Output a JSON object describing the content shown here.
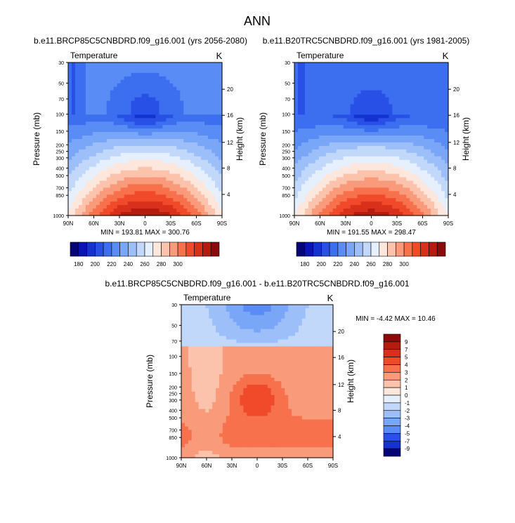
{
  "page_title": "ANN",
  "chart_data": [
    {
      "type": "heatmap",
      "title": "b.e11.BRCP85C5CNBDRD.f09_g16.001 (yrs 2056-2080)",
      "variable": "Temperature",
      "units": "K",
      "xlabel": "",
      "ylabel": "Pressure (mb)",
      "y2label": "Height (km)",
      "x_ticks": [
        "90N",
        "60N",
        "30N",
        "0",
        "30S",
        "60S",
        "90S"
      ],
      "y_ticks": [
        "30",
        "50",
        "70",
        "100",
        "150",
        "200",
        "250",
        "300",
        "400",
        "500",
        "700",
        "850",
        "1000"
      ],
      "y2_ticks": [
        "20",
        "16",
        "12",
        "8",
        "4"
      ],
      "min_max_text": "MIN = 193.81   MAX = 300.76",
      "min": 193.81,
      "max": 300.76,
      "colorbar": {
        "labels": [
          "180",
          "190",
          "200",
          "210",
          "220",
          "230",
          "240",
          "250",
          "260",
          "270",
          "280",
          "290",
          "300"
        ],
        "colors": [
          "#050575",
          "#0a14b4",
          "#1432d2",
          "#2850e6",
          "#3c6ef0",
          "#5a8cf5",
          "#7aa6f8",
          "#9cbff9",
          "#c2d8fb",
          "#e6f0fd",
          "#fde6dc",
          "#fbc3ac",
          "#f99a7a",
          "#f6714c",
          "#f04a2a",
          "#d9301b",
          "#b51c10",
          "#8a0b0b"
        ]
      }
    },
    {
      "type": "heatmap",
      "title": "b.e11.B20TRC5CNBDRD.f09_g16.001 (yrs 1981-2005)",
      "variable": "Temperature",
      "units": "K",
      "xlabel": "",
      "ylabel": "Pressure (mb)",
      "y2label": "Height (km)",
      "x_ticks": [
        "90N",
        "60N",
        "30N",
        "0",
        "30S",
        "60S",
        "90S"
      ],
      "y_ticks": [
        "30",
        "50",
        "70",
        "100",
        "150",
        "200",
        "250",
        "300",
        "400",
        "500",
        "700",
        "850",
        "1000"
      ],
      "y2_ticks": [
        "20",
        "16",
        "12",
        "8",
        "4"
      ],
      "min_max_text": "MIN = 191.55   MAX = 298.47",
      "min": 191.55,
      "max": 298.47,
      "colorbar": {
        "labels": [
          "180",
          "190",
          "200",
          "210",
          "220",
          "230",
          "240",
          "250",
          "260",
          "270",
          "280",
          "290",
          "300"
        ],
        "colors": [
          "#050575",
          "#0a14b4",
          "#1432d2",
          "#2850e6",
          "#3c6ef0",
          "#5a8cf5",
          "#7aa6f8",
          "#9cbff9",
          "#c2d8fb",
          "#e6f0fd",
          "#fde6dc",
          "#fbc3ac",
          "#f99a7a",
          "#f6714c",
          "#f04a2a",
          "#d9301b",
          "#b51c10",
          "#8a0b0b"
        ]
      }
    },
    {
      "type": "heatmap",
      "title": "b.e11.BRCP85C5CNBDRD.f09_g16.001 - b.e11.B20TRC5CNBDRD.f09_g16.001",
      "variable": "Temperature",
      "units": "K",
      "xlabel": "",
      "ylabel": "Pressure (mb)",
      "y2label": "Height (km)",
      "x_ticks": [
        "90N",
        "60N",
        "30N",
        "0",
        "30S",
        "60S",
        "90S"
      ],
      "y_ticks": [
        "30",
        "50",
        "70",
        "100",
        "150",
        "200",
        "250",
        "300",
        "400",
        "500",
        "700",
        "850",
        "1000"
      ],
      "y2_ticks": [
        "20",
        "16",
        "12",
        "8",
        "4"
      ],
      "min_max_text": "MIN =  -4.42   MAX =  10.46",
      "min": -4.42,
      "max": 10.46,
      "colorbar": {
        "labels": [
          "9",
          "7",
          "5",
          "4",
          "3",
          "2",
          "1",
          "0",
          "-1",
          "-2",
          "-3",
          "-4",
          "-5",
          "-7",
          "-9"
        ],
        "colors": [
          "#8a0b0b",
          "#b51c10",
          "#d9301b",
          "#f04a2a",
          "#f6714c",
          "#f99a7a",
          "#fbc3ac",
          "#fde6dc",
          "#e6f0fd",
          "#c2d8fb",
          "#9cbff9",
          "#7aa6f8",
          "#5a8cf5",
          "#2850e6",
          "#1432d2",
          "#050575"
        ]
      }
    }
  ]
}
